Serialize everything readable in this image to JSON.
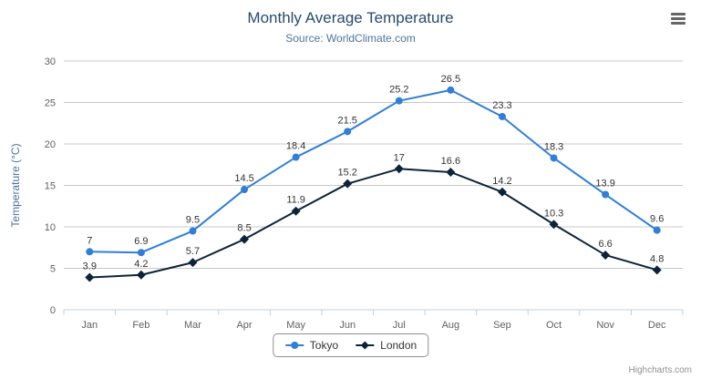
{
  "chart_data": {
    "type": "line",
    "title": "Monthly Average Temperature",
    "subtitle": "Source: WorldClimate.com",
    "categories": [
      "Jan",
      "Feb",
      "Mar",
      "Apr",
      "May",
      "Jun",
      "Jul",
      "Aug",
      "Sep",
      "Oct",
      "Nov",
      "Dec"
    ],
    "series": [
      {
        "name": "Tokyo",
        "color": "#2f7ed8",
        "marker": "circle",
        "values": [
          7,
          6.9,
          9.5,
          14.5,
          18.4,
          21.5,
          25.2,
          26.5,
          23.3,
          18.3,
          13.9,
          9.6
        ]
      },
      {
        "name": "London",
        "color": "#0d233a",
        "marker": "diamond",
        "values": [
          3.9,
          4.2,
          5.7,
          8.5,
          11.9,
          15.2,
          17,
          16.6,
          14.2,
          10.3,
          6.6,
          4.8
        ]
      }
    ],
    "xlabel": "",
    "ylabel": "Temperature (°C)",
    "ylim": [
      0,
      30
    ],
    "ytick_interval": 5,
    "grid": true,
    "data_labels": true,
    "legend_position": "bottom-center"
  },
  "credits": "Highcharts.com",
  "colors": {
    "title": "#274b6d",
    "subtitle": "#4d759e",
    "axis_label": "#606060",
    "axis_title": "#4d759e",
    "grid_line": "#c8c8c8",
    "axis_line": "#c0d0e0",
    "data_label": "#333333",
    "legend_border": "#909090",
    "legend_text": "#333333",
    "credits": "#909090",
    "menu_icon": "#666666"
  }
}
